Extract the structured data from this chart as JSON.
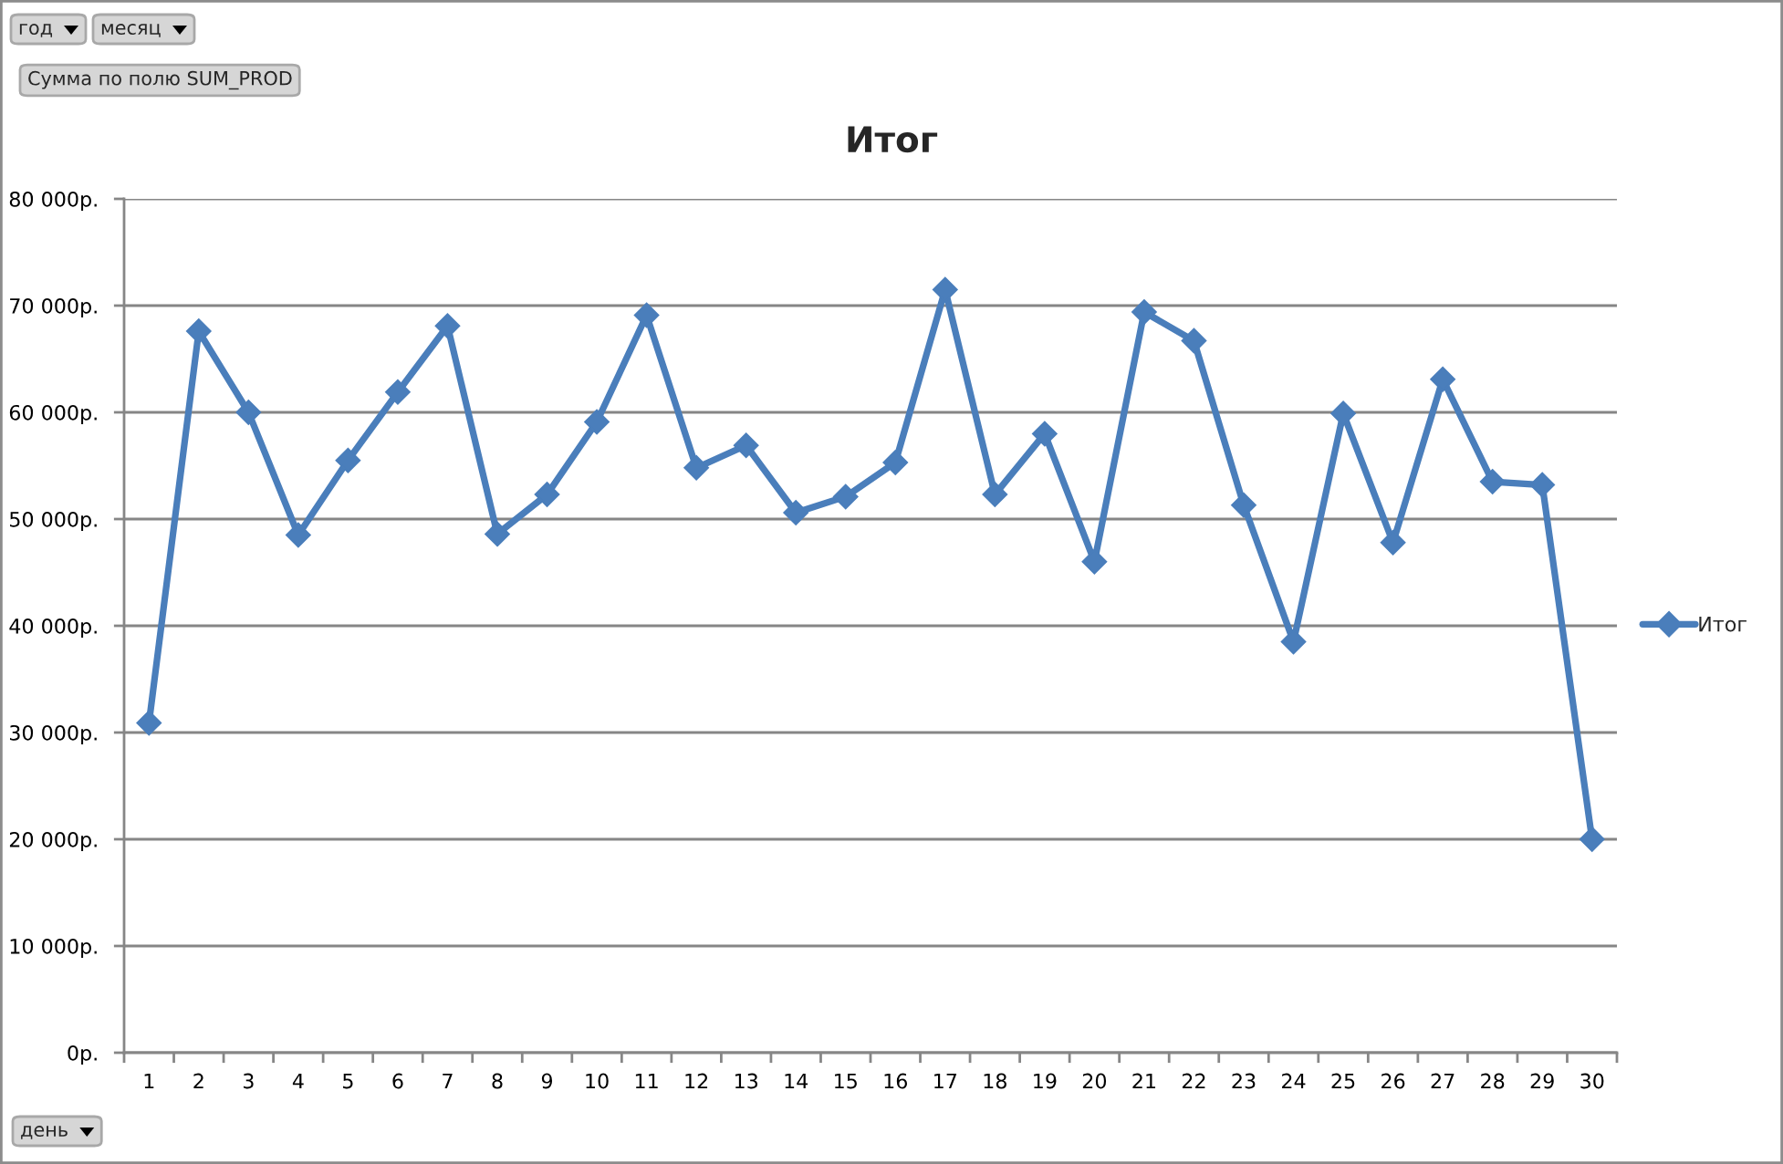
{
  "chart_data": {
    "type": "line",
    "title": "Итог",
    "xlabel": "день",
    "annotations": [
      "год",
      "месяц",
      "Сумма по полю SUM_PROD"
    ],
    "categories": [
      "1",
      "2",
      "3",
      "4",
      "5",
      "6",
      "7",
      "8",
      "9",
      "10",
      "11",
      "12",
      "13",
      "14",
      "15",
      "16",
      "17",
      "18",
      "19",
      "20",
      "21",
      "22",
      "23",
      "24",
      "25",
      "26",
      "27",
      "28",
      "29",
      "30"
    ],
    "series": [
      {
        "name": "Итог",
        "color": "#4a7ebb",
        "values": [
          30900,
          67600,
          60000,
          48500,
          55500,
          61900,
          68100,
          48600,
          52300,
          59100,
          69100,
          54800,
          56900,
          50600,
          52100,
          55300,
          71500,
          52300,
          58000,
          46000,
          69400,
          66700,
          51300,
          38500,
          59900,
          47800,
          63100,
          53500,
          53200,
          20000
        ]
      }
    ],
    "ylim": [
      0,
      80000
    ],
    "yticks": [
      {
        "value": 0,
        "label": "0р."
      },
      {
        "value": 10000,
        "label": "10 000р."
      },
      {
        "value": 20000,
        "label": "20 000р."
      },
      {
        "value": 30000,
        "label": "30 000р."
      },
      {
        "value": 40000,
        "label": "40 000р."
      },
      {
        "value": 50000,
        "label": "50 000р."
      },
      {
        "value": 60000,
        "label": "60 000р."
      },
      {
        "value": 70000,
        "label": "70 000р."
      },
      {
        "value": 80000,
        "label": "80 000р."
      }
    ],
    "grid": "y",
    "legend": "right",
    "marker": "diamond",
    "line_style": "solid"
  }
}
